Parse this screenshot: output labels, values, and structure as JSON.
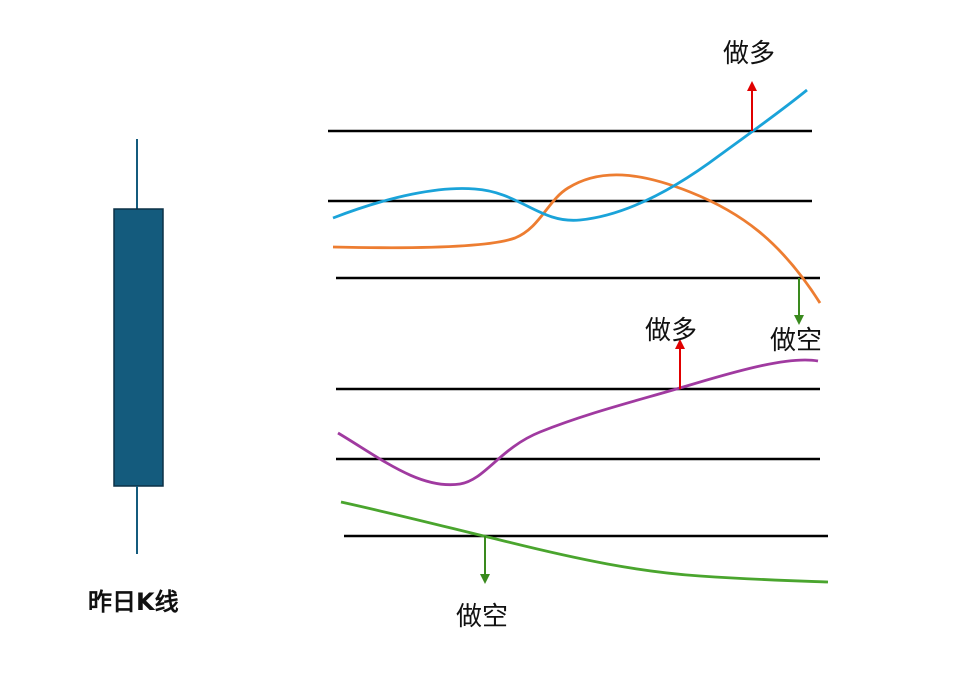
{
  "candle": {
    "caption": "昨日K线",
    "body_color": "#145b7d",
    "wick_color": "#145b7d"
  },
  "signals": {
    "long_label_top": "做多",
    "short_label_upper": "做空",
    "long_label_middle": "做多",
    "short_label_bottom": "做空"
  },
  "colors": {
    "level_line": "#000000",
    "blue_curve": "#1aa3d9",
    "orange_curve": "#ed7d31",
    "purple_curve": "#a03aa0",
    "green_curve": "#4aa52e",
    "long_arrow": "#e00000",
    "short_arrow": "#3a8a1e"
  }
}
